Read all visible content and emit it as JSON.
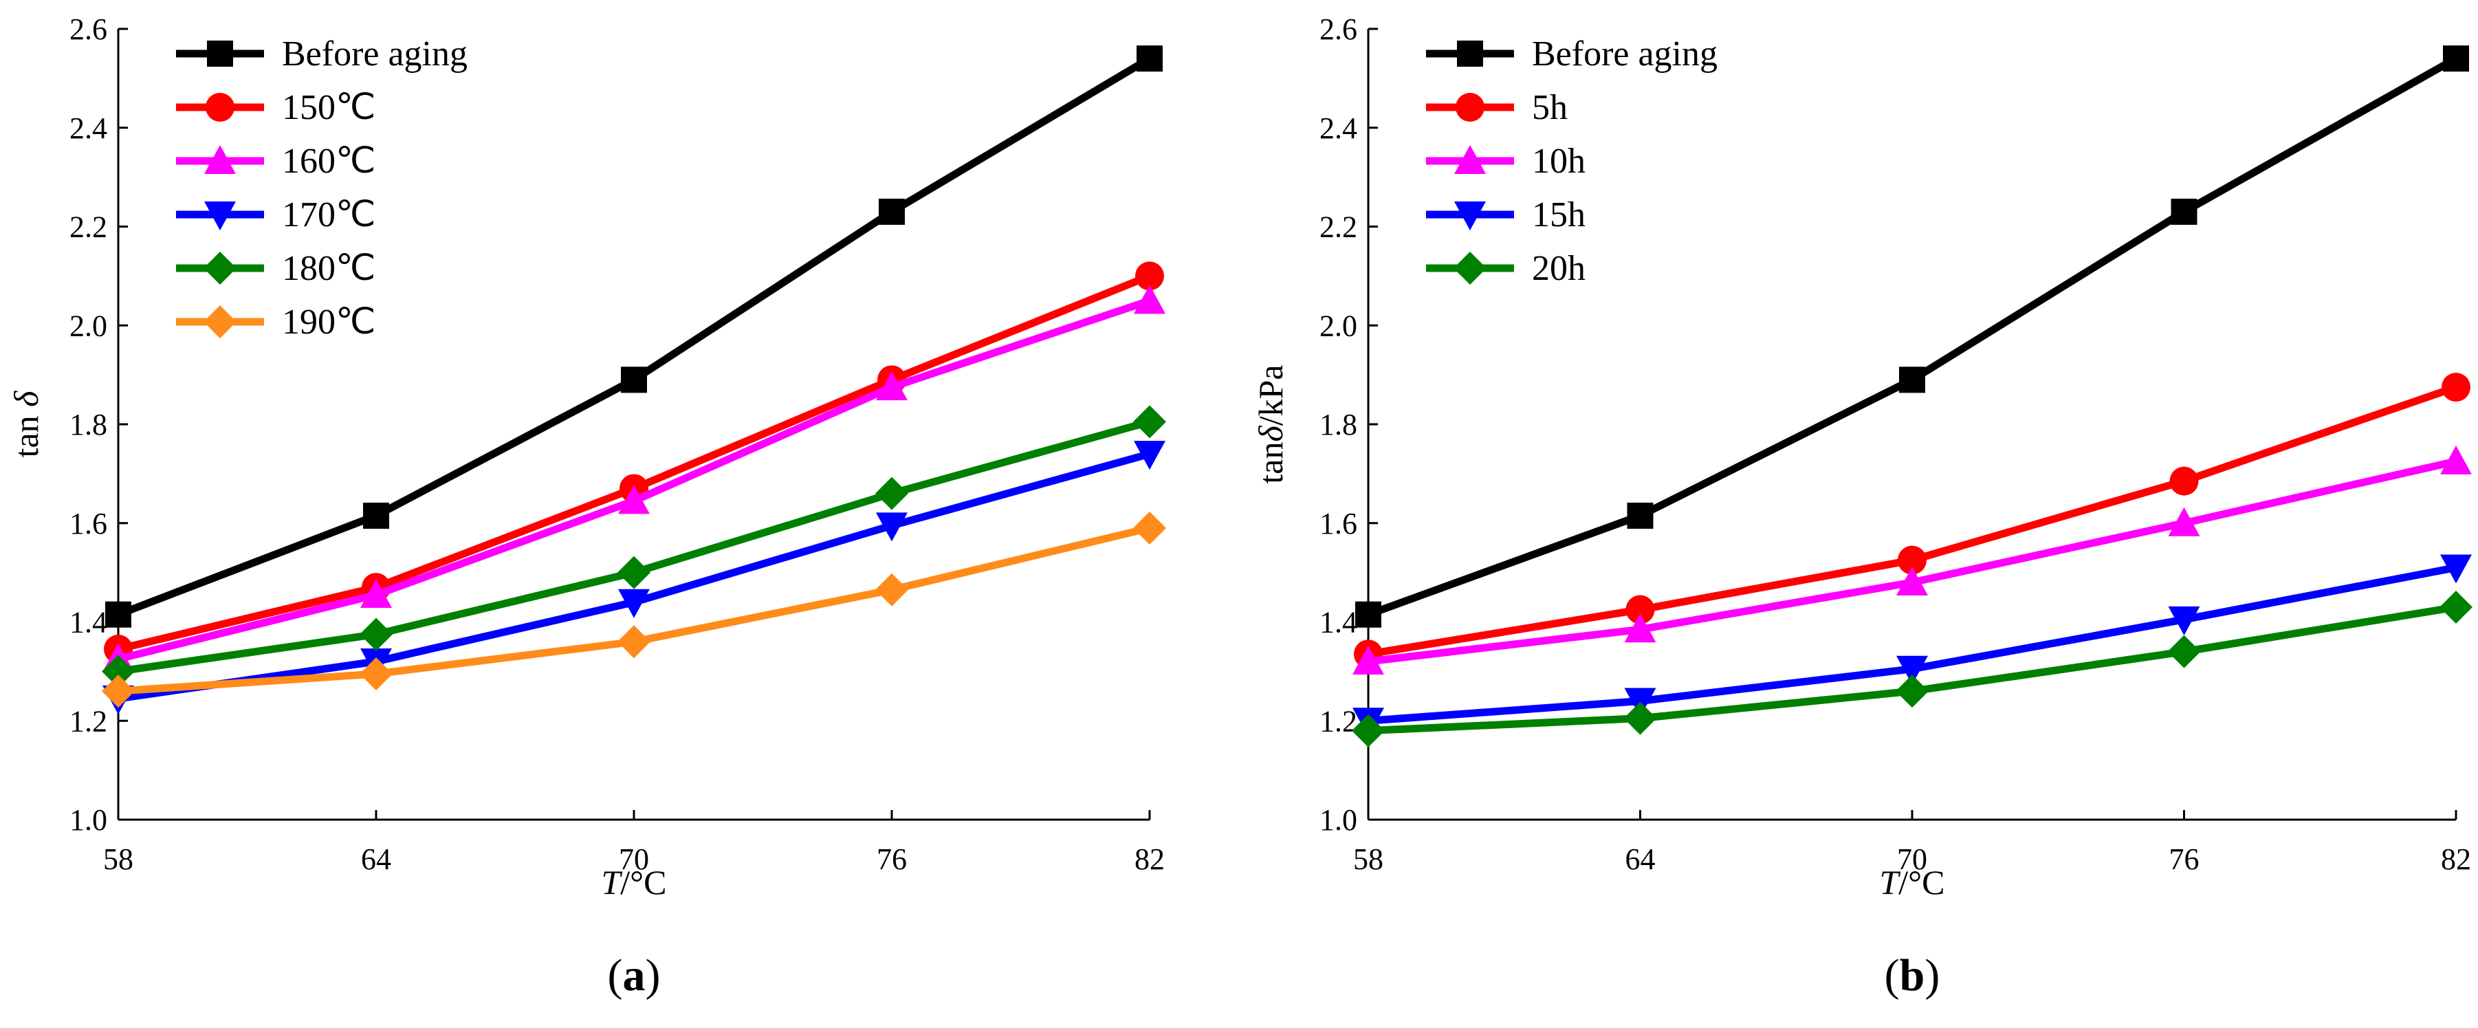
{
  "chart_data": [
    {
      "type": "line",
      "panel_label": "a",
      "xlabel_italic": "T",
      "xlabel_rest": "/°C",
      "ylabel_main": "tan ",
      "ylabel_symbol": "δ",
      "ylabel_suffix": "",
      "x": [
        58,
        64,
        70,
        76,
        82
      ],
      "xlim": [
        58,
        82
      ],
      "ylim": [
        1.0,
        2.6
      ],
      "yticks": [
        "1.0",
        "1.2",
        "1.4",
        "1.6",
        "1.8",
        "2.0",
        "2.2",
        "2.4",
        "2.6"
      ],
      "xticks": [
        "58",
        "64",
        "70",
        "76",
        "82"
      ],
      "legend_position": "top-left",
      "series": [
        {
          "name": "Before aging",
          "color": "#000000",
          "marker": "square",
          "values": [
            1.415,
            1.615,
            1.89,
            2.23,
            2.54
          ]
        },
        {
          "name": "150℃",
          "color": "#ff0000",
          "marker": "circle",
          "values": [
            1.345,
            1.47,
            1.67,
            1.89,
            2.1
          ]
        },
        {
          "name": "160℃",
          "color": "#ff00ff",
          "marker": "triangle-up",
          "values": [
            1.325,
            1.455,
            1.645,
            1.875,
            2.05
          ]
        },
        {
          "name": "170℃",
          "color": "#0000ff",
          "marker": "triangle-down",
          "values": [
            1.245,
            1.32,
            1.44,
            1.595,
            1.74
          ]
        },
        {
          "name": "180℃",
          "color": "#008000",
          "marker": "diamond",
          "values": [
            1.3,
            1.375,
            1.5,
            1.66,
            1.805
          ]
        },
        {
          "name": "190℃",
          "color": "#ff8c1a",
          "marker": "diamond",
          "values": [
            1.26,
            1.295,
            1.36,
            1.465,
            1.59
          ]
        }
      ]
    },
    {
      "type": "line",
      "panel_label": "b",
      "xlabel_italic": "T",
      "xlabel_rest": "/°C",
      "ylabel_main": "tan",
      "ylabel_symbol": "δ",
      "ylabel_suffix": "/kPa",
      "x": [
        58,
        64,
        70,
        76,
        82
      ],
      "xlim": [
        58,
        82
      ],
      "ylim": [
        1.0,
        2.6
      ],
      "yticks": [
        "1.0",
        "1.2",
        "1.4",
        "1.6",
        "1.8",
        "2.0",
        "2.2",
        "2.4",
        "2.6"
      ],
      "xticks": [
        "58",
        "64",
        "70",
        "76",
        "82"
      ],
      "legend_position": "top-left",
      "series": [
        {
          "name": "Before aging",
          "color": "#000000",
          "marker": "square",
          "values": [
            1.415,
            1.615,
            1.89,
            2.23,
            2.54
          ]
        },
        {
          "name": "5h",
          "color": "#ff0000",
          "marker": "circle",
          "values": [
            1.335,
            1.425,
            1.525,
            1.685,
            1.875
          ]
        },
        {
          "name": "10h",
          "color": "#ff00ff",
          "marker": "triangle-up",
          "values": [
            1.32,
            1.385,
            1.48,
            1.6,
            1.725
          ]
        },
        {
          "name": "15h",
          "color": "#0000ff",
          "marker": "triangle-down",
          "values": [
            1.2,
            1.24,
            1.305,
            1.405,
            1.51
          ]
        },
        {
          "name": "20h",
          "color": "#008000",
          "marker": "diamond",
          "values": [
            1.18,
            1.205,
            1.26,
            1.34,
            1.43
          ]
        }
      ]
    }
  ]
}
